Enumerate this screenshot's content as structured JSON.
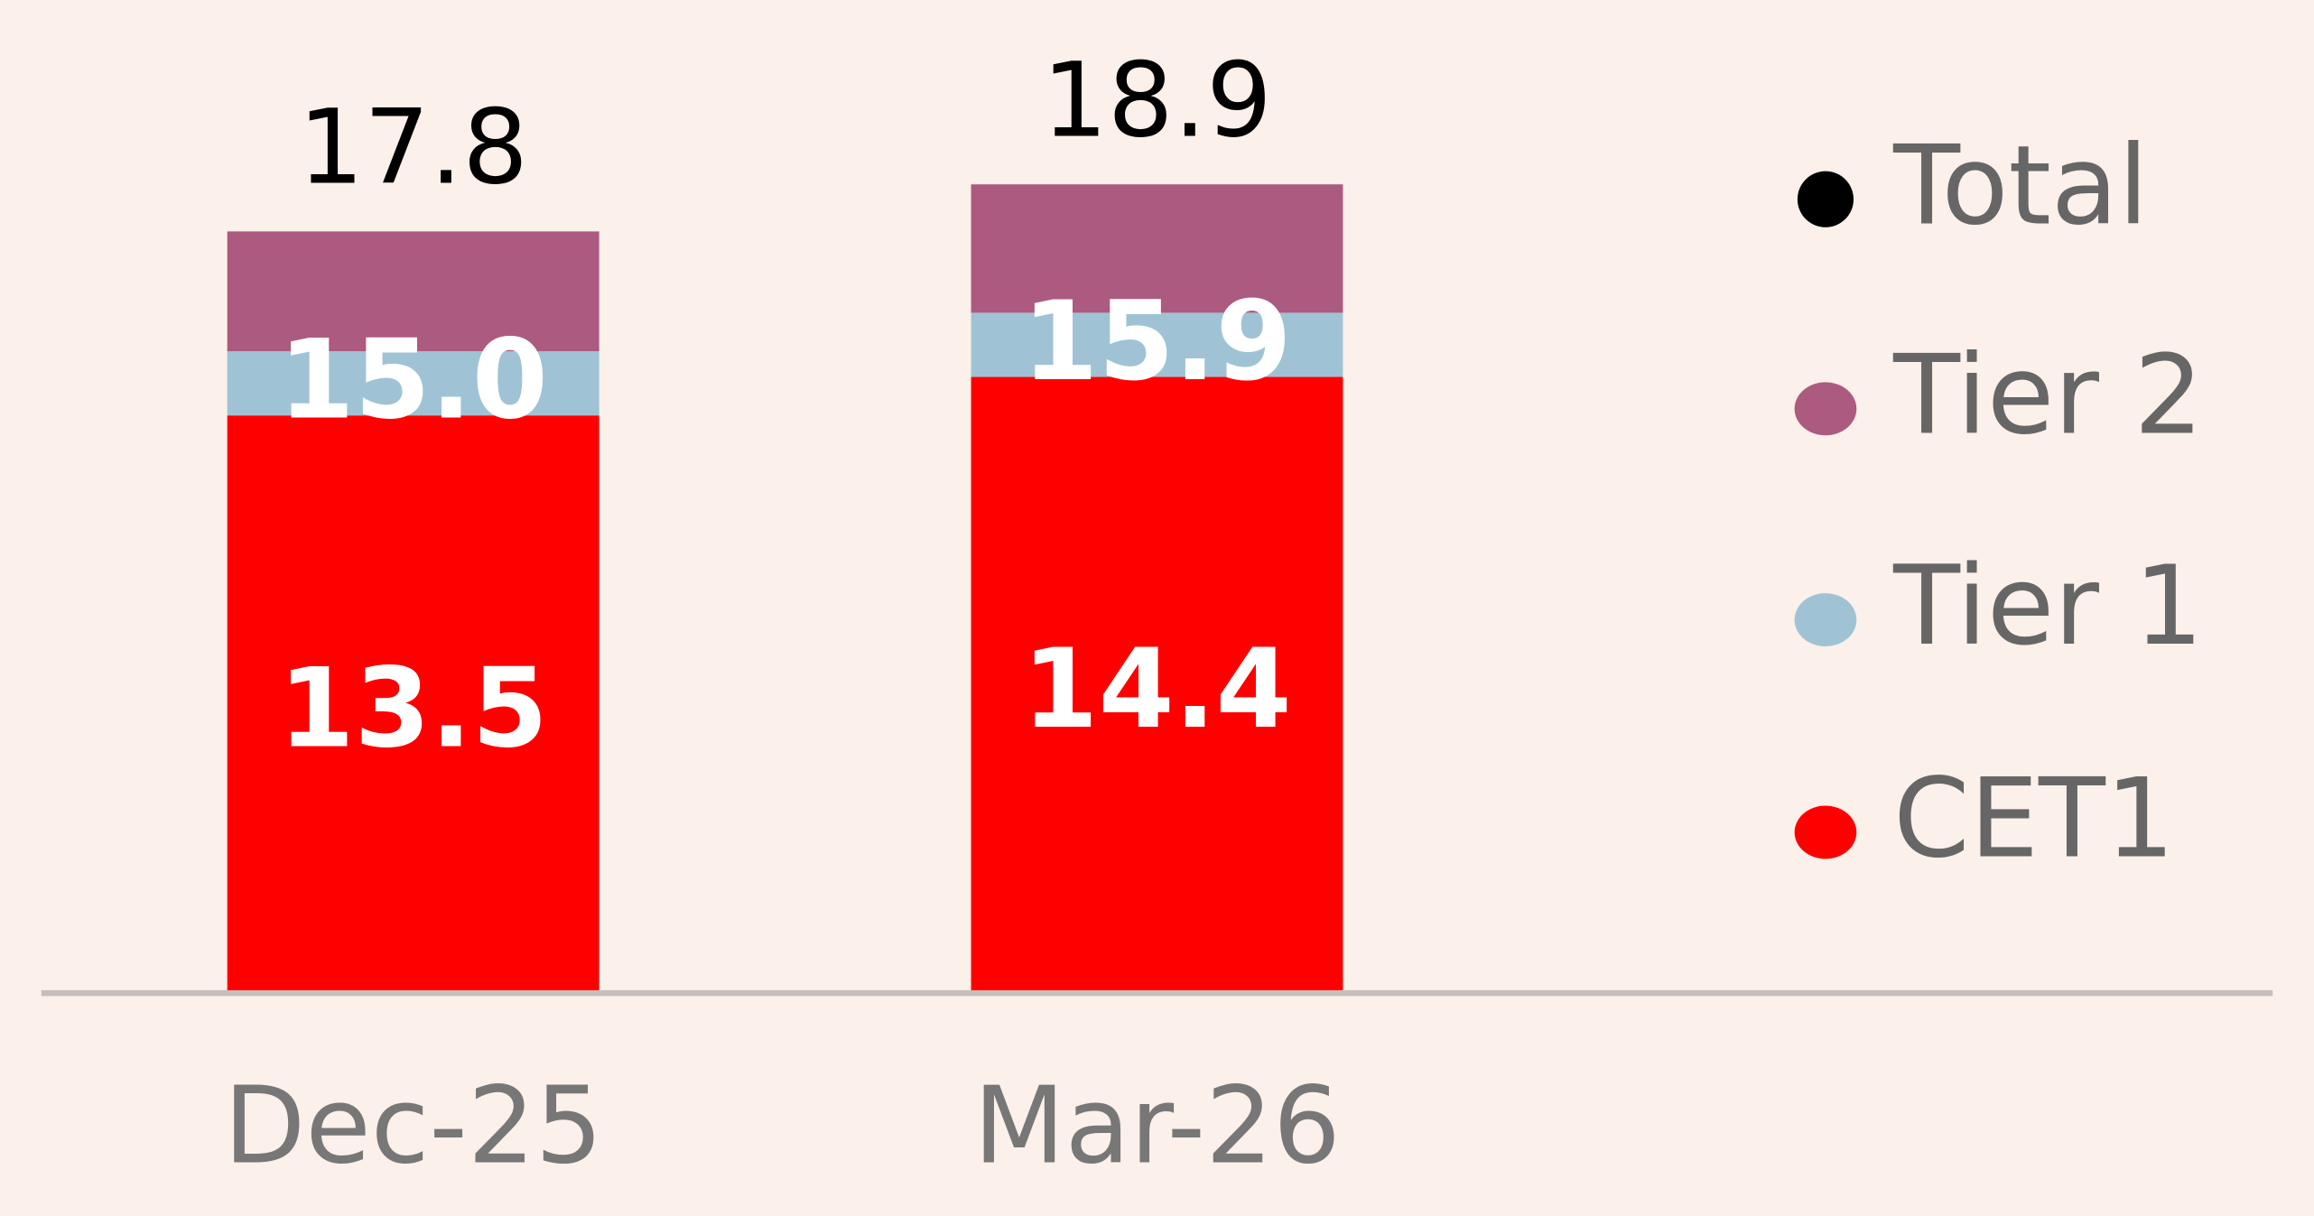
{
  "chart_data": {
    "type": "stacked_ratio_bar",
    "categories": [
      "Dec-25",
      "Mar-26"
    ],
    "series": [
      {
        "name": "Total",
        "color": "#000000",
        "values": [
          17.8,
          18.9
        ]
      },
      {
        "name": "Tier 2",
        "color": "#ad5a80"
      },
      {
        "name": "Tier 1",
        "color": "#9fc3d4",
        "values": [
          15.0,
          15.9
        ],
        "value_labels": [
          "15.0",
          "15.9"
        ]
      },
      {
        "name": "CET1",
        "color": "#ff0000",
        "values": [
          13.5,
          14.4
        ]
      }
    ],
    "ylim": [
      0,
      20
    ],
    "legend": "right"
  }
}
